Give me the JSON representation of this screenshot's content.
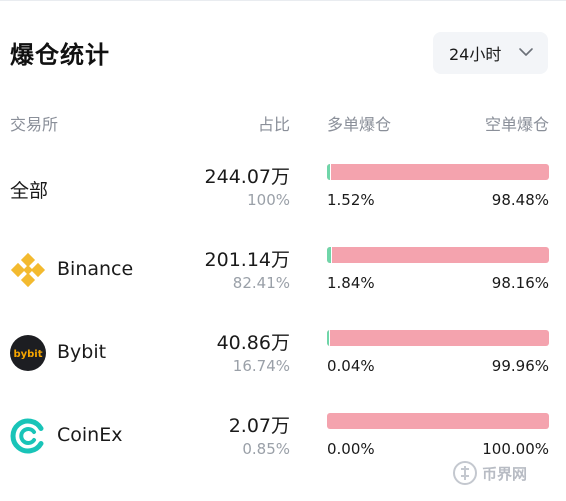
{
  "header": {
    "title": "爆仓统计",
    "range": "24小时"
  },
  "columns": {
    "exchange": "交易所",
    "share": "占比",
    "long": "多单爆仓",
    "short": "空单爆仓"
  },
  "rows": [
    {
      "name": "全部",
      "amount": "244.07万",
      "share": "100%",
      "long_pct": "1.52%",
      "short_pct": "98.48%",
      "long_ratio": 0.0152,
      "icon": "none"
    },
    {
      "name": "Binance",
      "amount": "201.14万",
      "share": "82.41%",
      "long_pct": "1.84%",
      "short_pct": "98.16%",
      "long_ratio": 0.0184,
      "icon": "binance-logo-icon"
    },
    {
      "name": "Bybit",
      "amount": "40.86万",
      "share": "16.74%",
      "long_pct": "0.04%",
      "short_pct": "99.96%",
      "long_ratio": 0.0004,
      "icon": "bybit-logo-icon"
    },
    {
      "name": "CoinEx",
      "amount": "2.07万",
      "share": "0.85%",
      "long_pct": "0.00%",
      "short_pct": "100.00%",
      "long_ratio": 0.0,
      "icon": "coinex-logo-icon"
    }
  ],
  "logos": {
    "bybit_text": "bybit"
  },
  "watermark": {
    "text": "币界网"
  },
  "colors": {
    "long": "#6fd6a9",
    "short": "#f4a3ae",
    "binance": "#f3ba2f",
    "coinex": "#19c4b8",
    "bybit_bg": "#1d1e22"
  }
}
